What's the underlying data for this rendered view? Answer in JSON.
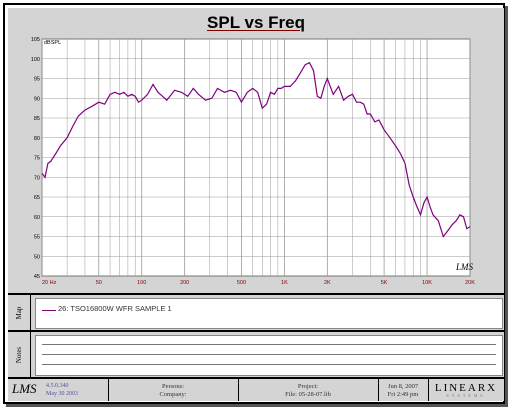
{
  "chart_data": {
    "type": "line",
    "title": "SPL vs Freq",
    "ylabel": "dBSPL",
    "xscale": "log",
    "xlim": [
      20,
      20000
    ],
    "ylim": [
      45,
      105
    ],
    "yticks": [
      45,
      50,
      55,
      60,
      65,
      70,
      75,
      80,
      85,
      90,
      95,
      100,
      105
    ],
    "xtick_values": [
      20,
      50,
      100,
      200,
      500,
      1000,
      2000,
      5000,
      10000,
      20000
    ],
    "xtick_labels": [
      "20 Hz",
      "50",
      "100",
      "200",
      "500",
      "1K",
      "2K",
      "5K",
      "10K",
      "20K"
    ],
    "grid": true,
    "series": [
      {
        "name": "26: TSO16800W WFR SAMPLE 1",
        "color": "#800080",
        "x": [
          20,
          21,
          22,
          23,
          25,
          27,
          30,
          33,
          36,
          40,
          45,
          50,
          55,
          60,
          65,
          70,
          75,
          80,
          85,
          90,
          95,
          100,
          110,
          120,
          130,
          140,
          150,
          170,
          190,
          210,
          230,
          250,
          280,
          310,
          340,
          380,
          420,
          460,
          500,
          550,
          600,
          650,
          700,
          750,
          800,
          850,
          900,
          950,
          1000,
          1100,
          1200,
          1300,
          1400,
          1500,
          1600,
          1700,
          1800,
          1900,
          2000,
          2200,
          2400,
          2600,
          2800,
          3000,
          3200,
          3400,
          3600,
          3800,
          4000,
          4300,
          4600,
          5000,
          5500,
          6000,
          6500,
          7000,
          7500,
          8000,
          8500,
          9000,
          9500,
          10000,
          10500,
          11000,
          12000,
          13000,
          14000,
          15000,
          16000,
          17000,
          18000,
          19000,
          20000
        ],
        "y": [
          71,
          70,
          73.5,
          74,
          76,
          78,
          80,
          83,
          85.5,
          87,
          88,
          89,
          88.5,
          91,
          91.5,
          91,
          91.5,
          90.5,
          91,
          90.5,
          89,
          89.5,
          91,
          93.5,
          91.5,
          90.5,
          89.5,
          92,
          91.5,
          90.5,
          92.5,
          91,
          89.5,
          90,
          92.5,
          91.5,
          92,
          91.5,
          89,
          91.5,
          92.5,
          91.5,
          87.5,
          88.5,
          91.5,
          91,
          92.5,
          92.5,
          93,
          93,
          94.5,
          96.5,
          98.5,
          99,
          97,
          90.5,
          90,
          93,
          95,
          91,
          93,
          89.5,
          90.5,
          91,
          89,
          89,
          88.5,
          86,
          86,
          84,
          84.5,
          82,
          80,
          78,
          76,
          73.5,
          68,
          65,
          62.5,
          60.5,
          63.5,
          65,
          62.5,
          60.5,
          59,
          55,
          56.5,
          58,
          59,
          60.5,
          60,
          57,
          57.5
        ]
      }
    ]
  },
  "header": {
    "title": "SPL vs Freq",
    "watermark": "LMS"
  },
  "map": {
    "label": "Map",
    "legend_text": "26: TSO16800W WFR SAMPLE 1"
  },
  "notes": {
    "label": "Notes"
  },
  "footer": {
    "logo": "LMS",
    "version": "4.5.0.340",
    "version_date": "May 30 2003",
    "persons_label": "Persons:",
    "company_label": "Company:",
    "project_label": "Project:",
    "file_label": "File: 05-28-07.lib",
    "date": "Jun 8, 2007",
    "time": "Fri 2:49 pm",
    "brand": "LINEARX",
    "brand_sub": "SYSTEMS"
  },
  "colors": {
    "curve": "#800080",
    "panel": "#d4d4d4",
    "grid": "#9a9a9a",
    "axis_label": "#800000"
  }
}
